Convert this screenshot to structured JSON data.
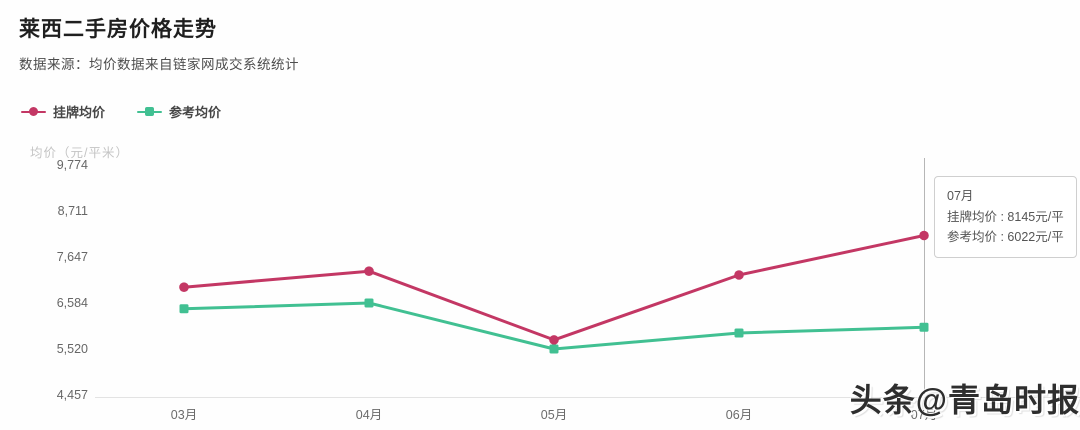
{
  "header": {
    "title": "莱西二手房价格走势",
    "subtitle": "数据来源：均价数据来自链家网成交系统统计"
  },
  "legend": {
    "items": [
      {
        "label": "挂牌均价",
        "color": "#c33764",
        "marker": "line-dot-icon"
      },
      {
        "label": "参考均价",
        "color": "#41c092",
        "marker": "line-square-icon"
      }
    ]
  },
  "chart_data": {
    "type": "line",
    "title": "莱西二手房价格走势",
    "y_axis_name": "均价（元/平米）",
    "categories": [
      "03月",
      "04月",
      "05月",
      "06月",
      "07月"
    ],
    "series": [
      {
        "name": "挂牌均价",
        "color": "#c33764",
        "marker": "circle",
        "values": [
          6950,
          7320,
          5730,
          7230,
          8145
        ]
      },
      {
        "name": "参考均价",
        "color": "#41c092",
        "marker": "square",
        "values": [
          6450,
          6584,
          5520,
          5890,
          6022
        ]
      }
    ],
    "y_ticks": [
      "9,774",
      "8,711",
      "7,647",
      "6,584",
      "5,520",
      "4,457"
    ],
    "y_tick_values": [
      9774,
      8711,
      7647,
      6584,
      5520,
      4457
    ],
    "ylim": [
      4457,
      9774
    ],
    "grid": false,
    "legend_position": "top-left",
    "highlighted_category": "07月"
  },
  "tooltip": {
    "title": "07月",
    "line1": "挂牌均价 : 8145元/平",
    "line2": "参考均价 : 6022元/平"
  },
  "watermark": {
    "text": "头条@青岛时报"
  }
}
